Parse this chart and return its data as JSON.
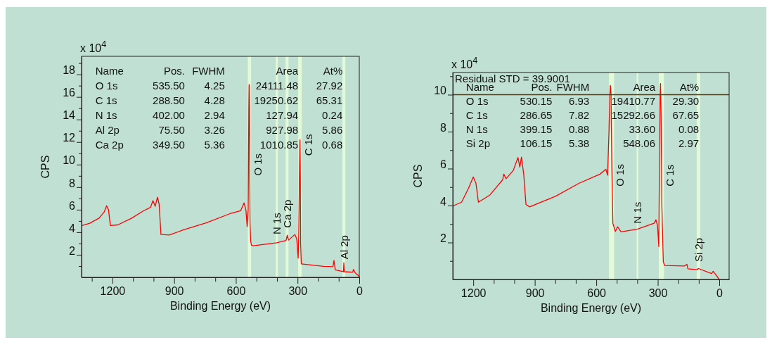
{
  "chart_data": [
    {
      "type": "line",
      "xlabel": "Binding Energy (eV)",
      "ylabel": "CPS",
      "annotations": [
        "x 10$^{4}$",
        "Name",
        "Pos.",
        "FWHM",
        "Area",
        "At%",
        "O 1s",
        "535.50",
        "4.25",
        "24111.48",
        "27.92",
        "C 1s",
        "288.50",
        "4.28",
        "19250.62",
        "65.31",
        "N 1s",
        "402.00",
        "2.94",
        "127.94",
        "0.24",
        "Al 2p",
        "75.50",
        "3.26",
        "927.98",
        "5.86",
        "Ca 2p",
        "349.50",
        "5.36",
        "1010.85",
        "0.68"
      ],
      "xlim": [
        1350,
        0
      ],
      "xticks": [
        {
          "value": 1300,
          "label": null
        },
        1200,
        {
          "value": 1100,
          "label": null
        },
        {
          "value": 1000,
          "label": null
        },
        900,
        {
          "value": 800,
          "label": null
        },
        {
          "value": 700,
          "label": null
        },
        600,
        {
          "value": 500,
          "label": null
        },
        {
          "value": 400,
          "label": null
        },
        300,
        {
          "value": 200,
          "label": null
        },
        {
          "value": 100,
          "label": null
        },
        0
      ],
      "ylim": [
        0,
        19.6
      ],
      "yticks": [
        {
          "value": 1,
          "label": null
        },
        2,
        {
          "value": 3,
          "label": null
        },
        4,
        {
          "value": 5,
          "label": null
        },
        6,
        {
          "value": 7,
          "label": null
        },
        8,
        {
          "value": 9,
          "label": null
        },
        10,
        {
          "value": 11,
          "label": null
        },
        12,
        {
          "value": 13,
          "label": null
        },
        14,
        {
          "value": 15,
          "label": null
        },
        16,
        {
          "value": 17,
          "label": null
        },
        18,
        {
          "value": 19,
          "label": null
        }
      ],
      "bands": [
        {
          "axis": "x",
          "from": 542,
          "to": 526,
          "label": "O 1s",
          "color": "#e2fad8"
        },
        {
          "axis": "x",
          "from": 406,
          "to": 396,
          "label": "N 1s",
          "color": "#e2fad8"
        },
        {
          "axis": "x",
          "from": 358,
          "to": 344,
          "label": "Ca 2p",
          "color": "#e2fad8"
        },
        {
          "axis": "x",
          "from": 297,
          "to": 280,
          "label": "C 1s",
          "color": "#e2fad8"
        },
        {
          "axis": "x",
          "from": 82,
          "to": 68,
          "label": "Al 2p",
          "color": "#e2fad8"
        }
      ],
      "series": [
        {
          "color": "#ff0000",
          "x": [
            1347,
            1310,
            1265,
            1240,
            1228,
            1219,
            1210,
            1174,
            1106,
            1049,
            1015,
            1003,
            992,
            981,
            973,
            964,
            924,
            856,
            742,
            628,
            577,
            560,
            551,
            545,
            540,
            537,
            535.5,
            534,
            531,
            528,
            524,
            515,
            401,
            356,
            350,
            344,
            313,
            304,
            297,
            294,
            290,
            288.5,
            287,
            285,
            282,
            174,
            128,
            123,
            117,
            77,
            75,
            72,
            32,
            28,
            20,
            0
          ],
          "values": [
            4.6,
            4.8,
            5.25,
            5.8,
            6.35,
            6.0,
            4.6,
            4.65,
            5.25,
            5.9,
            6.2,
            6.8,
            6.3,
            7.1,
            6.5,
            3.8,
            3.75,
            4.2,
            4.85,
            5.65,
            5.9,
            6.6,
            5.95,
            4.5,
            6.0,
            15,
            17.1,
            15,
            5,
            3.2,
            2.85,
            2.8,
            3.06,
            3.27,
            3.73,
            3.3,
            3.8,
            3.4,
            1.7,
            4,
            10,
            12.2,
            10,
            3,
            1.2,
            0.98,
            0.95,
            1.5,
            0.67,
            0.5,
            1.3,
            0.5,
            0.46,
            0.7,
            0.4,
            0.08
          ]
        }
      ]
    },
    {
      "type": "line",
      "xlabel": "Binding Energy (eV)",
      "ylabel": "CPS",
      "annotations": [
        "x 10$^{4}$",
        "Residual STD = 39.9001",
        "Name",
        "Pos.",
        "FWHM",
        "Area",
        "At%",
        "O 1s",
        "530.15",
        "6.93",
        "19410.77",
        "29.30",
        "C 1s",
        "286.65",
        "7.82",
        "15292.66",
        "67.65",
        "N 1s",
        "399.15",
        "0.88",
        "33.60",
        "0.08",
        "Si 2p",
        "106.15",
        "5.38",
        "548.06",
        "2.97"
      ],
      "xlim": [
        1300,
        -48
      ],
      "xticks": [
        1200,
        {
          "value": 1100,
          "label": null
        },
        {
          "value": 1000,
          "label": null
        },
        900,
        {
          "value": 800,
          "label": null
        },
        {
          "value": 700,
          "label": null
        },
        600,
        {
          "value": 500,
          "label": null
        },
        {
          "value": 400,
          "label": null
        },
        300,
        {
          "value": 200,
          "label": null
        },
        {
          "value": 100,
          "label": null
        },
        0
      ],
      "ylim": [
        0,
        11.2
      ],
      "yticks": [
        {
          "value": 1,
          "label": null
        },
        2,
        {
          "value": 3,
          "label": null
        },
        4,
        {
          "value": 5,
          "label": null
        },
        6,
        {
          "value": 7,
          "label": null
        },
        8,
        {
          "value": 9,
          "label": null
        },
        10,
        {
          "value": 11,
          "label": null
        }
      ],
      "ref_lines": [
        {
          "axis": "y",
          "value": 10,
          "color": "#4a3f1e"
        }
      ],
      "bands": [
        {
          "axis": "x",
          "from": 538,
          "to": 513,
          "label": "O 1s",
          "color": "#e2fad8"
        },
        {
          "axis": "x",
          "from": 403,
          "to": 395,
          "label": "N 1s",
          "color": "#e2fad8"
        },
        {
          "axis": "x",
          "from": 295,
          "to": 270,
          "label": "C 1s",
          "color": "#e2fad8"
        },
        {
          "axis": "x",
          "from": 110,
          "to": 93,
          "label": "Si 2p",
          "color": "#e2fad8"
        }
      ],
      "series": [
        {
          "color": "#ff0000",
          "x": [
            1297,
            1257,
            1223,
            1200,
            1187,
            1175,
            1120,
            1057,
            1051,
            1040,
            1005,
            982,
            973,
            965,
            954,
            943,
            925,
            799,
            685,
            582,
            553,
            545,
            538,
            534,
            531,
            528,
            524,
            519,
            507,
            496,
            479,
            398,
            318,
            309,
            301,
            295,
            292,
            289,
            286.6,
            284,
            280,
            273,
            267,
            170,
            158,
            153,
            106,
            103,
            38,
            30,
            21,
            0
          ],
          "values": [
            3.99,
            4.18,
            4.94,
            5.55,
            5.2,
            4.18,
            4.56,
            5.39,
            5.7,
            5.45,
            5.9,
            6.6,
            6.08,
            6.62,
            5.7,
            4.06,
            3.93,
            4.5,
            5.2,
            5.7,
            5.96,
            5.64,
            8,
            10,
            10.5,
            10,
            6,
            3.04,
            2.6,
            2.85,
            2.58,
            2.73,
            3.04,
            3.23,
            2.9,
            1.78,
            6,
            10,
            10.6,
            9,
            4,
            0.95,
            0.76,
            0.73,
            0.82,
            0.58,
            0.53,
            0.6,
            0.32,
            0.44,
            0.32,
            0
          ]
        }
      ]
    }
  ]
}
